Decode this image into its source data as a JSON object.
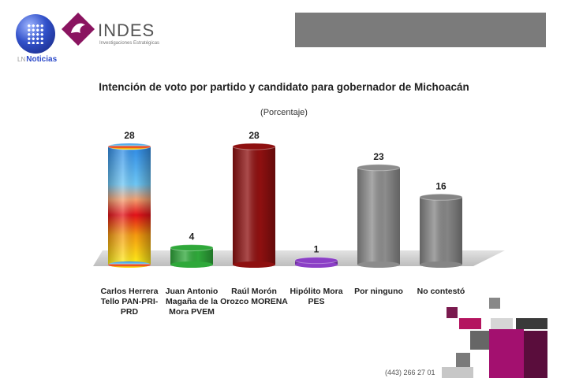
{
  "header": {
    "news_logo_text": "Noticias",
    "news_logo_prefix": "LN",
    "brand_name": "INDES",
    "brand_tagline": "Investigaciones Estratégicas"
  },
  "footer": {
    "phone": "(443) 266 27 01"
  },
  "chart_data": {
    "type": "bar",
    "title": "Intención de voto por partido y candidato para gobernador de Michoacán",
    "subtitle": "(Porcentaje)",
    "categories": [
      "Carlos Herrera Tello PAN-PRI-PRD",
      "Juan Antonio Magaña de la Mora PVEM",
      "Raúl Morón Orozco MORENA",
      "Hipólito Mora PES",
      "Por ninguno",
      "No contestó"
    ],
    "values": [
      28,
      4,
      28,
      1,
      23,
      16
    ],
    "data_labels": [
      "28",
      "4",
      "28",
      "1",
      "23",
      "16"
    ],
    "colors": [
      "gradient-pan-pri-prd",
      "#2fa83a",
      "#8e1010",
      "#8b3fc6",
      "#8c8c8c",
      "#858585"
    ],
    "ylim": [
      0,
      28
    ],
    "grid": false,
    "legend": "none"
  }
}
